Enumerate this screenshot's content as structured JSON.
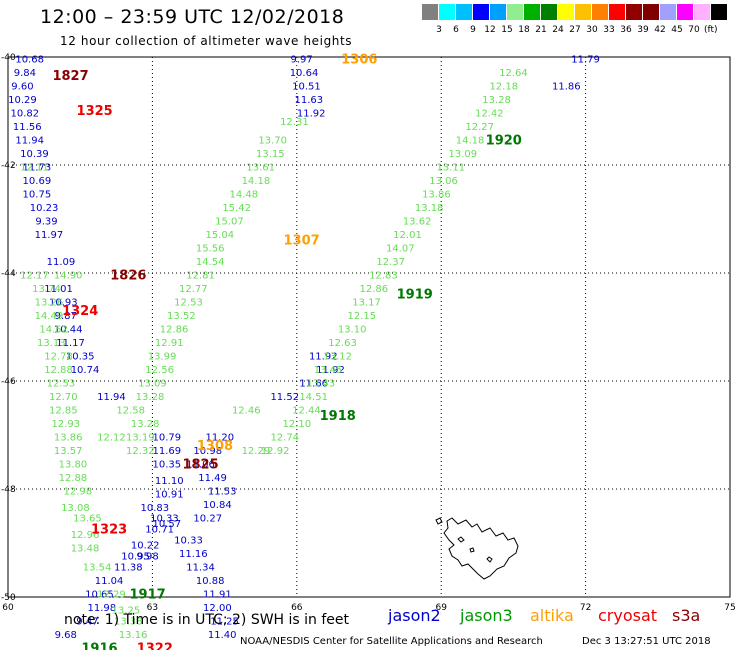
{
  "header": {
    "title": "12:00 – 23:59 UTC 12/02/2018",
    "subtitle": "12 hour collection of altimeter wave heights"
  },
  "scale": {
    "colors": [
      "#808080",
      "#00ffff",
      "#00bfff",
      "#0000ff",
      "#00a0ff",
      "#90ee90",
      "#00b000",
      "#008000",
      "#ffff00",
      "#ffc000",
      "#ff8000",
      "#ff0000",
      "#900000",
      "#800000",
      "#a0a0ff",
      "#ff00ff",
      "#ffb0ff",
      "#000000"
    ],
    "labels": [
      "3",
      "6",
      "9",
      "12",
      "15",
      "18",
      "21",
      "24",
      "27",
      "30",
      "33",
      "36",
      "39",
      "42",
      "45",
      "70"
    ],
    "unit": "(ft)"
  },
  "axes": {
    "x_ticks": [
      "60",
      "63",
      "66",
      "69",
      "72",
      "75"
    ],
    "y_ticks": [
      "-40",
      "-42",
      "-44",
      "-46",
      "-48",
      "-50"
    ]
  },
  "chart_data": {
    "type": "scatter",
    "x_range": [
      60,
      75
    ],
    "y_range": [
      -50,
      -40
    ],
    "tracks": [
      {
        "sat": "jason2",
        "color": "#0000cc",
        "points": [
          [
            60.45,
            -40.05,
            "10.68"
          ],
          [
            60.35,
            -40.3,
            "9.84"
          ],
          [
            60.3,
            -40.55,
            "9.60"
          ],
          [
            60.3,
            -40.8,
            "10.29"
          ],
          [
            60.35,
            -41.05,
            "10.82"
          ],
          [
            60.4,
            -41.3,
            "11.56"
          ],
          [
            60.45,
            -41.55,
            "11.94"
          ],
          [
            60.55,
            -41.8,
            "10.39"
          ],
          [
            60.6,
            -42.05,
            "11.73"
          ],
          [
            60.6,
            -42.3,
            "10.69"
          ],
          [
            60.6,
            -42.55,
            "10.75"
          ],
          [
            60.75,
            -42.8,
            "10.23"
          ],
          [
            60.8,
            -43.05,
            "9.39"
          ],
          [
            60.85,
            -43.3,
            "11.97"
          ],
          [
            61.1,
            -43.8,
            "11.09"
          ],
          [
            61.05,
            -44.3,
            "11.01"
          ],
          [
            61.15,
            -44.55,
            "10.93"
          ],
          [
            61.2,
            -44.8,
            "9.87"
          ],
          [
            61.25,
            -45.05,
            "10.44"
          ],
          [
            61.3,
            -45.3,
            "11.17"
          ],
          [
            61.5,
            -45.55,
            "10.35"
          ],
          [
            61.6,
            -45.8,
            "10.74"
          ],
          [
            63.05,
            -48.35,
            "10.83"
          ],
          [
            63.25,
            -48.55,
            "10.33"
          ],
          [
            63.15,
            -48.75,
            "10.71"
          ],
          [
            62.85,
            -49.05,
            "10.22"
          ],
          [
            62.65,
            -49.25,
            "10.95"
          ],
          [
            62.5,
            -49.45,
            "11.38"
          ],
          [
            62.1,
            -49.7,
            "11.04"
          ],
          [
            61.9,
            -49.95,
            "10.65"
          ],
          [
            61.95,
            -50.2,
            "11.98"
          ],
          [
            61.65,
            -50.45,
            "9.47"
          ],
          [
            61.2,
            -50.7,
            "9.68"
          ],
          [
            66.1,
            -40.05,
            "9.97"
          ],
          [
            66.15,
            -40.3,
            "10.64"
          ],
          [
            66.2,
            -40.55,
            "10.51"
          ],
          [
            66.25,
            -40.8,
            "11.63"
          ],
          [
            66.3,
            -41.05,
            "11.92"
          ],
          [
            65.75,
            -46.3,
            "11.52"
          ],
          [
            64.4,
            -47.05,
            "11.20"
          ],
          [
            64.15,
            -47.3,
            "10.98"
          ],
          [
            64.0,
            -47.55,
            "11.06"
          ],
          [
            64.25,
            -47.8,
            "11.49"
          ],
          [
            64.45,
            -48.05,
            "11.53"
          ],
          [
            64.35,
            -48.3,
            "10.84"
          ],
          [
            64.15,
            -48.55,
            "10.27"
          ],
          [
            63.75,
            -48.95,
            "10.33"
          ],
          [
            63.85,
            -49.2,
            "11.16"
          ],
          [
            64.0,
            -49.45,
            "11.34"
          ],
          [
            64.2,
            -49.7,
            "10.88"
          ],
          [
            64.35,
            -49.95,
            "11.91"
          ],
          [
            64.35,
            -50.2,
            "12.00"
          ],
          [
            64.5,
            -50.45,
            "11.25"
          ],
          [
            64.45,
            -50.7,
            "11.40"
          ],
          [
            66.7,
            -45.8,
            "11.92"
          ],
          [
            66.55,
            -45.55,
            "11.92"
          ],
          [
            66.35,
            -46.05,
            "11.66"
          ],
          [
            63.3,
            -47.05,
            "10.79"
          ],
          [
            63.3,
            -47.3,
            "11.69"
          ],
          [
            63.3,
            -47.55,
            "10.35"
          ],
          [
            63.35,
            -47.85,
            "11.10"
          ],
          [
            63.35,
            -48.1,
            "10.91"
          ],
          [
            63.3,
            -48.65,
            "10.57"
          ],
          [
            62.9,
            -49.25,
            "9.98"
          ],
          [
            72.0,
            -40.05,
            "11.79"
          ],
          [
            71.6,
            -40.55,
            "11.86"
          ],
          [
            62.15,
            -46.3,
            "11.94"
          ]
        ]
      },
      {
        "sat": "jason3",
        "color": "#66dd55",
        "points": [
          [
            60.55,
            -42.05,
            "12.11"
          ],
          [
            60.55,
            -44.05,
            "12.17"
          ],
          [
            61.25,
            -44.05,
            "14.90"
          ],
          [
            60.8,
            -44.3,
            "13.74"
          ],
          [
            60.85,
            -44.55,
            "13.26"
          ],
          [
            60.85,
            -44.8,
            "14.49"
          ],
          [
            60.95,
            -45.05,
            "14.52"
          ],
          [
            60.9,
            -45.3,
            "13.13"
          ],
          [
            61.05,
            -45.55,
            "12.78"
          ],
          [
            61.05,
            -45.8,
            "12.88"
          ],
          [
            61.1,
            -46.05,
            "12.53"
          ],
          [
            61.15,
            -46.3,
            "12.70"
          ],
          [
            61.15,
            -46.55,
            "12.85"
          ],
          [
            61.2,
            -46.8,
            "12.93"
          ],
          [
            61.25,
            -47.05,
            "13.86"
          ],
          [
            61.25,
            -47.3,
            "13.57"
          ],
          [
            61.35,
            -47.55,
            "13.80"
          ],
          [
            61.35,
            -47.8,
            "12.88"
          ],
          [
            61.45,
            -48.05,
            "12.98"
          ],
          [
            61.4,
            -48.35,
            "13.08"
          ],
          [
            61.65,
            -48.55,
            "13.65"
          ],
          [
            61.6,
            -48.85,
            "12.96"
          ],
          [
            61.6,
            -49.1,
            "13.48"
          ],
          [
            61.85,
            -49.45,
            "13.54"
          ],
          [
            62.15,
            -49.95,
            "12.29"
          ],
          [
            62.45,
            -50.25,
            "13.25"
          ],
          [
            62.5,
            -50.45,
            "13.38"
          ],
          [
            62.6,
            -50.7,
            "13.16"
          ],
          [
            65.95,
            -41.2,
            "12.31"
          ],
          [
            65.5,
            -41.55,
            "13.70"
          ],
          [
            65.45,
            -41.8,
            "13.15"
          ],
          [
            65.25,
            -42.05,
            "13.61"
          ],
          [
            65.15,
            -42.3,
            "14.18"
          ],
          [
            64.9,
            -42.55,
            "14.48"
          ],
          [
            64.75,
            -42.8,
            "15.42"
          ],
          [
            64.6,
            -43.05,
            "15.07"
          ],
          [
            64.4,
            -43.3,
            "15.04"
          ],
          [
            64.2,
            -43.55,
            "15.56"
          ],
          [
            64.2,
            -43.8,
            "14.54"
          ],
          [
            64.0,
            -44.05,
            "12.81"
          ],
          [
            63.85,
            -44.3,
            "12.77"
          ],
          [
            63.75,
            -44.55,
            "12.53"
          ],
          [
            63.6,
            -44.8,
            "13.52"
          ],
          [
            63.45,
            -45.05,
            "12.86"
          ],
          [
            63.35,
            -45.3,
            "12.91"
          ],
          [
            63.2,
            -45.55,
            "13.99"
          ],
          [
            63.15,
            -45.8,
            "12.56"
          ],
          [
            63.0,
            -46.05,
            "13.09"
          ],
          [
            62.95,
            -46.3,
            "13.28"
          ],
          [
            62.55,
            -46.55,
            "12.58"
          ],
          [
            62.85,
            -46.8,
            "13.28"
          ],
          [
            62.75,
            -47.05,
            "13.19"
          ],
          [
            62.15,
            -47.05,
            "12.12"
          ],
          [
            62.75,
            -47.3,
            "12.32"
          ],
          [
            65.15,
            -47.3,
            "12.29"
          ],
          [
            64.95,
            -46.55,
            "12.46"
          ],
          [
            70.5,
            -40.3,
            "12.64"
          ],
          [
            70.3,
            -40.55,
            "12.18"
          ],
          [
            70.15,
            -40.8,
            "13.28"
          ],
          [
            70.0,
            -41.05,
            "12.42"
          ],
          [
            69.8,
            -41.3,
            "12.27"
          ],
          [
            69.6,
            -41.55,
            "14.18"
          ],
          [
            69.45,
            -41.8,
            "13.09"
          ],
          [
            69.2,
            -42.05,
            "13.11"
          ],
          [
            69.05,
            -42.3,
            "13.06"
          ],
          [
            68.9,
            -42.55,
            "13.86"
          ],
          [
            68.75,
            -42.8,
            "13.18"
          ],
          [
            68.5,
            -43.05,
            "13.62"
          ],
          [
            68.3,
            -43.3,
            "12.01"
          ],
          [
            68.15,
            -43.55,
            "14.07"
          ],
          [
            67.95,
            -43.8,
            "12.37"
          ],
          [
            67.8,
            -44.05,
            "12.83"
          ],
          [
            67.6,
            -44.3,
            "12.86"
          ],
          [
            67.45,
            -44.55,
            "13.17"
          ],
          [
            67.35,
            -44.8,
            "12.15"
          ],
          [
            67.15,
            -45.05,
            "13.10"
          ],
          [
            66.95,
            -45.3,
            "12.63"
          ],
          [
            66.85,
            -45.55,
            "13.12"
          ],
          [
            66.65,
            -45.8,
            "13.45"
          ],
          [
            66.5,
            -46.05,
            "13.43"
          ],
          [
            66.35,
            -46.3,
            "14.51"
          ],
          [
            66.2,
            -46.55,
            "12.44"
          ],
          [
            66.0,
            -46.8,
            "12.10"
          ],
          [
            65.75,
            -47.05,
            "12.74"
          ],
          [
            65.55,
            -47.3,
            "12.92"
          ]
        ]
      },
      {
        "sat": "altika",
        "color": "#ffa000",
        "points": []
      }
    ],
    "time_labels": [
      {
        "x": 61.3,
        "y": -40.35,
        "text": "1827",
        "color": "#8b0000"
      },
      {
        "x": 61.8,
        "y": -41.0,
        "text": "1325",
        "color": "#ee0000"
      },
      {
        "x": 62.5,
        "y": -44.05,
        "text": "1826",
        "color": "#8b0000"
      },
      {
        "x": 61.5,
        "y": -44.7,
        "text": "1324",
        "color": "#ee0000"
      },
      {
        "x": 64.0,
        "y": -47.55,
        "text": "1825",
        "color": "#8b0000"
      },
      {
        "x": 62.1,
        "y": -48.75,
        "text": "1323",
        "color": "#ee0000"
      },
      {
        "x": 63.05,
        "y": -50.95,
        "text": "1322",
        "color": "#ee0000"
      },
      {
        "x": 62.9,
        "y": -49.95,
        "text": "1917",
        "color": "#007700"
      },
      {
        "x": 61.9,
        "y": -50.95,
        "text": "1916",
        "color": "#007700"
      },
      {
        "x": 66.85,
        "y": -46.65,
        "text": "1918",
        "color": "#007700"
      },
      {
        "x": 68.45,
        "y": -44.4,
        "text": "1919",
        "color": "#007700"
      },
      {
        "x": 70.3,
        "y": -41.55,
        "text": "1920",
        "color": "#007700"
      },
      {
        "x": 67.3,
        "y": -40.05,
        "text": "1306",
        "color": "#ffa000"
      },
      {
        "x": 66.1,
        "y": -43.4,
        "text": "1307",
        "color": "#ffa000"
      },
      {
        "x": 64.3,
        "y": -47.2,
        "text": "1308",
        "color": "#ffa000"
      }
    ]
  },
  "legend": {
    "note": "note:  1) Time is in UTC;  2) SWH is in feet",
    "missions": [
      {
        "name": "jason2",
        "color": "#0000cc"
      },
      {
        "name": "jason3",
        "color": "#009900"
      },
      {
        "name": "altika",
        "color": "#ffa000"
      },
      {
        "name": "cryosat",
        "color": "#ee0000"
      },
      {
        "name": "s3a",
        "color": "#8b0000"
      }
    ]
  },
  "footer": {
    "credit": "NOAA/NESDIS Center for Satellite Applications and Research",
    "timestamp": "Dec  3 13:27:51 UTC 2018"
  }
}
